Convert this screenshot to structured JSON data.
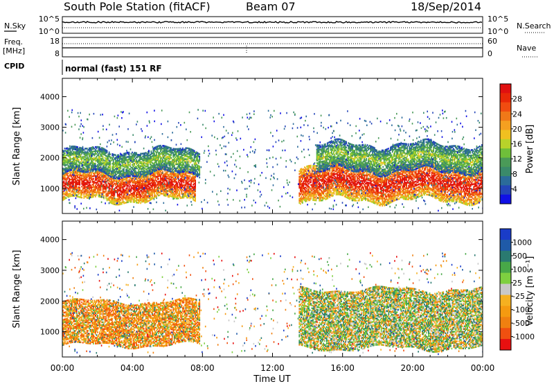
{
  "header": {
    "title": "South Pole Station (fitACF)",
    "beam": "Beam 07",
    "date": "18/Sep/2014"
  },
  "top_panels": {
    "nsky_label": "N.Sky",
    "nsearch_label": "N.Search",
    "nsky_ticks": [
      "10^5",
      "10^0"
    ],
    "nsearch_ticks": [
      "10^5",
      "10^0"
    ],
    "freq_label": "Freq.",
    "freq_unit": "[MHz]",
    "freq_ticks": [
      "18",
      "8"
    ],
    "nave_label": "Nave",
    "nave_ticks": [
      "60",
      "0"
    ],
    "cpid_label": "CPID",
    "cpid_text": "normal (fast) 151 RF"
  },
  "chart_data": [
    {
      "type": "heatmap",
      "panel": "power",
      "xlabel": "",
      "ylabel": "Slant Range [km]",
      "xlim": [
        0,
        24
      ],
      "ylim": [
        180,
        4600
      ],
      "yticks": [
        "1000",
        "2000",
        "3000",
        "4000"
      ],
      "colorbar": {
        "label": "Power [dB]",
        "ticks": [
          "4",
          "8",
          "12",
          "16",
          "20",
          "24",
          "28"
        ],
        "colors": [
          "#1010e6",
          "#2445b8",
          "#2b6b9a",
          "#3a8a6a",
          "#4a9a58",
          "#6fbf3a",
          "#b8d22a",
          "#f0c020",
          "#f5a020",
          "#f07818",
          "#f04c10",
          "#e82808",
          "#e01010"
        ]
      },
      "features": [
        {
          "t0": 0.0,
          "t1": 7.6,
          "r_low": 650,
          "r_high": 1600,
          "level": "high"
        },
        {
          "t0": 0.0,
          "t1": 7.8,
          "r_low": 1500,
          "r_high": 2300,
          "level": "low"
        },
        {
          "t0": 13.5,
          "t1": 24.0,
          "r_low": 650,
          "r_high": 1800,
          "level": "high"
        },
        {
          "t0": 14.5,
          "t1": 24.0,
          "r_low": 1600,
          "r_high": 2500,
          "level": "low"
        }
      ]
    },
    {
      "type": "heatmap",
      "panel": "velocity",
      "xlabel": "Time UT",
      "ylabel": "Slant Range [km]",
      "xlim": [
        0,
        24
      ],
      "ylim": [
        180,
        4600
      ],
      "xticks": [
        "00:00",
        "04:00",
        "08:00",
        "12:00",
        "16:00",
        "20:00",
        "00:00"
      ],
      "yticks": [
        "1000",
        "2000",
        "3000",
        "4000"
      ],
      "colorbar": {
        "label": "Velocity [m s⁻¹]",
        "ticks": [
          "1000",
          "500",
          "100",
          "25",
          "-25",
          "-100",
          "-500",
          "-1000"
        ],
        "colors": [
          "#1a3cc8",
          "#1f5aa8",
          "#2a7a70",
          "#48a848",
          "#7ed040",
          "#c8c8c8",
          "#f5b020",
          "#f59a10",
          "#f08010",
          "#f05010",
          "#e81010"
        ]
      },
      "features": [
        {
          "t0": 0.0,
          "t1": 7.8,
          "r_low": 600,
          "r_high": 2000,
          "level": "mixed"
        },
        {
          "t0": 13.5,
          "t1": 24.0,
          "r_low": 500,
          "r_high": 2400,
          "level": "mixed"
        }
      ]
    }
  ]
}
